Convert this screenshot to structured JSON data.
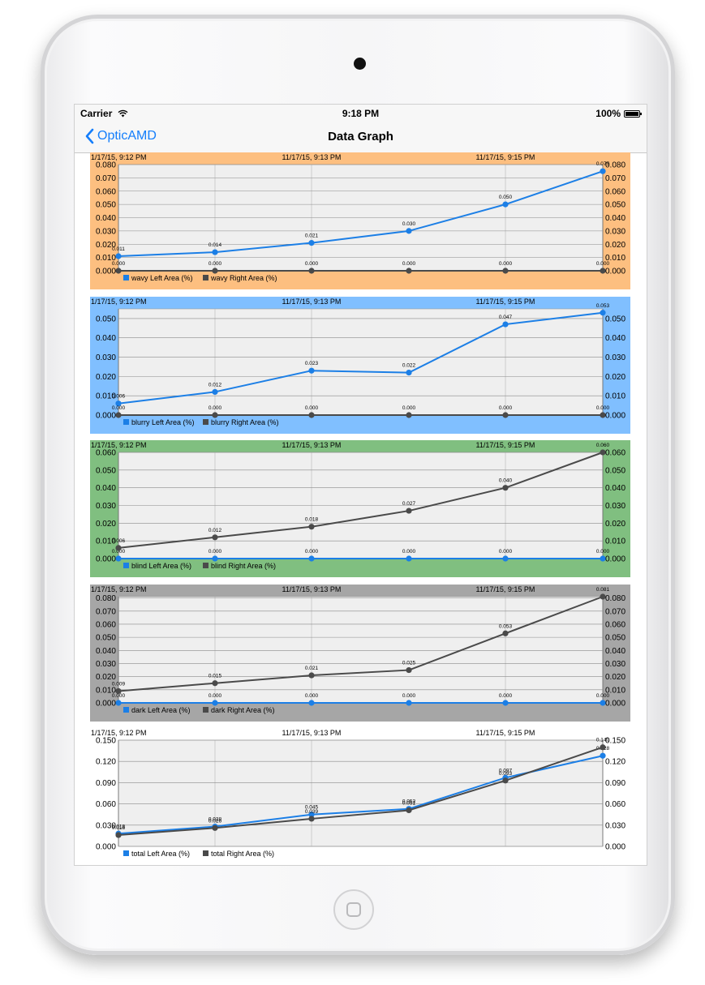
{
  "status_bar": {
    "carrier": "Carrier",
    "time": "9:18 PM",
    "battery": "100%"
  },
  "nav": {
    "back_label": "OpticAMD",
    "title": "Data Graph"
  },
  "date_labels": [
    "1/17/15, 9:12 PM",
    "11/17/15, 9:13 PM",
    "11/17/15, 9:15 PM"
  ],
  "colors": {
    "left_series": "#1c7fe6",
    "right_series": "#4a4a4a",
    "ios_blue": "#147efb"
  },
  "chart_data": [
    {
      "type": "line",
      "background": "#fdbf80",
      "yticks": [
        "0.000",
        "0.010",
        "0.020",
        "0.030",
        "0.040",
        "0.050",
        "0.060",
        "0.070",
        "0.080"
      ],
      "ylim": [
        0,
        0.08
      ],
      "series": [
        {
          "name": "wavy Left Area (%)",
          "values": [
            0.011,
            0.014,
            0.021,
            0.03,
            0.05,
            0.075
          ],
          "labels": [
            "0.011",
            "0.014",
            "0.021",
            "0.030",
            "0.050",
            "0.075"
          ]
        },
        {
          "name": "wavy Right Area (%)",
          "values": [
            0,
            0,
            0,
            0,
            0,
            0
          ],
          "labels": [
            "0.000",
            "0.000",
            "0.000",
            "0.000",
            "0.000",
            "0.000"
          ]
        }
      ]
    },
    {
      "type": "line",
      "background": "#80bfff",
      "yticks": [
        "0.000",
        "0.010",
        "0.020",
        "0.030",
        "0.040",
        "0.050"
      ],
      "ylim": [
        0,
        0.055
      ],
      "series": [
        {
          "name": "blurry Left Area (%)",
          "values": [
            0.006,
            0.012,
            0.023,
            0.022,
            0.047,
            0.053
          ],
          "labels": [
            "0.006",
            "0.012",
            "0.023",
            "0.022",
            "0.047",
            "0.053"
          ]
        },
        {
          "name": "blurry Right Area (%)",
          "values": [
            0,
            0,
            0,
            0,
            0,
            0
          ],
          "labels": [
            "0.000",
            "0.000",
            "0.000",
            "0.000",
            "0.000",
            "0.000"
          ]
        }
      ]
    },
    {
      "type": "line",
      "background": "#80bf80",
      "yticks": [
        "0.000",
        "0.010",
        "0.020",
        "0.030",
        "0.040",
        "0.050",
        "0.060"
      ],
      "ylim": [
        0,
        0.06
      ],
      "series": [
        {
          "name": "blind Left Area (%)",
          "values": [
            0,
            0,
            0,
            0,
            0,
            0
          ],
          "labels": [
            "0.000",
            "0.000",
            "0.000",
            "0.000",
            "0.000",
            "0.000"
          ]
        },
        {
          "name": "blind Right Area (%)",
          "values": [
            0.006,
            0.012,
            0.018,
            0.027,
            0.04,
            0.06
          ],
          "labels": [
            "0.006",
            "0.012",
            "0.018",
            "0.027",
            "0.040",
            "0.060"
          ]
        }
      ]
    },
    {
      "type": "line",
      "background": "#a6a6a6",
      "yticks": [
        "0.000",
        "0.010",
        "0.020",
        "0.030",
        "0.040",
        "0.050",
        "0.060",
        "0.070",
        "0.080"
      ],
      "ylim": [
        0,
        0.081
      ],
      "series": [
        {
          "name": "dark Left Area (%)",
          "values": [
            0,
            0,
            0,
            0,
            0,
            0
          ],
          "labels": [
            "0.000",
            "0.000",
            "0.000",
            "0.000",
            "0.000",
            "0.000"
          ]
        },
        {
          "name": "dark Right Area (%)",
          "values": [
            0.009,
            0.015,
            0.021,
            0.025,
            0.053,
            0.081
          ],
          "labels": [
            "0.009",
            "0.015",
            "0.021",
            "0.025",
            "0.053",
            "0.081"
          ]
        }
      ]
    },
    {
      "type": "line",
      "background": "#ffffff",
      "yticks": [
        "0.000",
        "0.030",
        "0.060",
        "0.090",
        "0.120",
        "0.150"
      ],
      "ylim": [
        0,
        0.15
      ],
      "series": [
        {
          "name": "total Left Area (%)",
          "values": [
            0.018,
            0.028,
            0.045,
            0.053,
            0.097,
            0.128
          ],
          "labels": [
            "0.018",
            "0.028",
            "0.045",
            "0.053",
            "0.097",
            "0.128"
          ]
        },
        {
          "name": "total Right Area (%)",
          "values": [
            0.016,
            0.026,
            0.039,
            0.051,
            0.093,
            0.14
          ],
          "labels": [
            "0.016",
            "0.026",
            "0.039",
            "0.051",
            "0.093",
            "0.140"
          ]
        }
      ]
    }
  ]
}
